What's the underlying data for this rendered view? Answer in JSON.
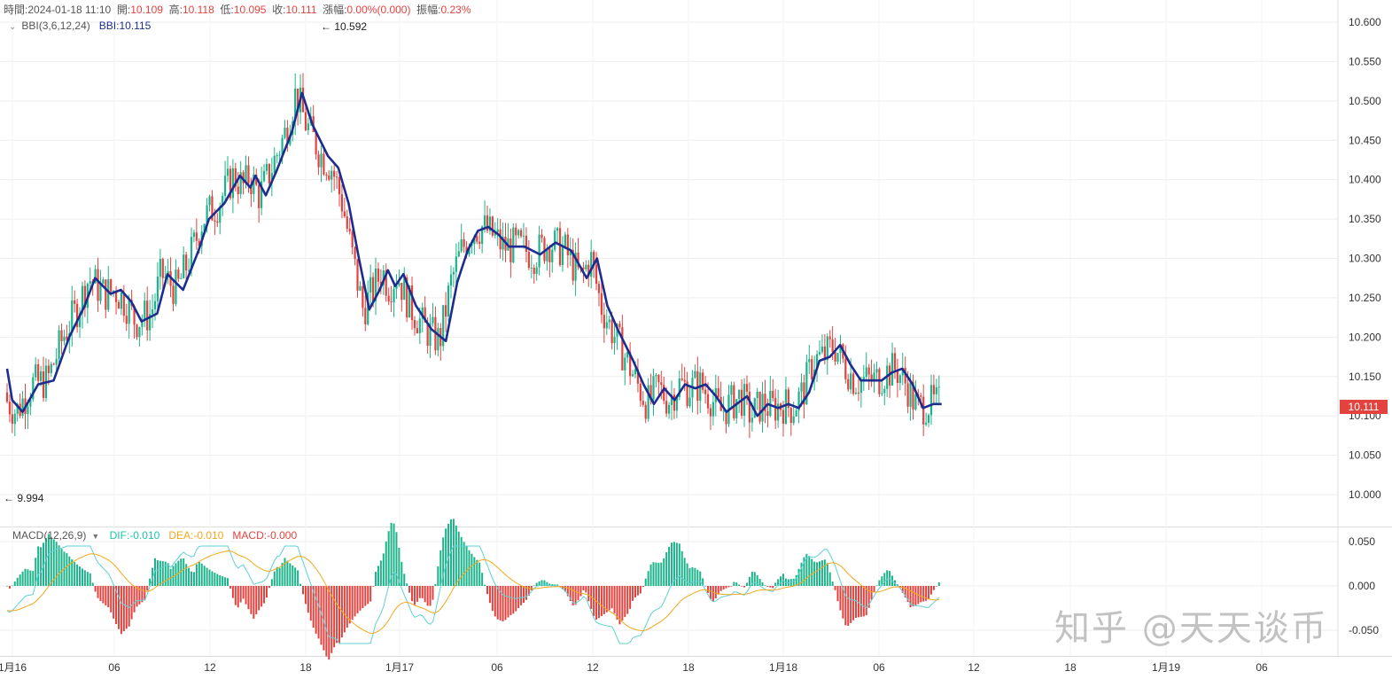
{
  "header": {
    "time_label": "時間:",
    "time_value": "2024-01-18 11:10",
    "open_label": "開:",
    "open_value": "10.109",
    "high_label": "高:",
    "high_value": "10.118",
    "low_label": "低:",
    "low_value": "10.095",
    "close_label": "收:",
    "close_value": "10.111",
    "change_label": "漲幅:",
    "change_value": "0.00%(0.000)",
    "amp_label": "振幅:",
    "amp_value": "0.23%"
  },
  "indicator_bbi": {
    "name": "BBI(3,6,12,24)",
    "value_text": "BBI:10.115"
  },
  "indicator_macd": {
    "name": "MACD(12,26,9)",
    "dif_text": "DIF:-0.010",
    "dea_text": "DEA:-0.010",
    "macd_text": "MACD:-0.000"
  },
  "markers": {
    "high": "← 10.592",
    "low": "← 9.994"
  },
  "last_price": "10.111",
  "watermark": "知乎 @天天谈币",
  "colors": {
    "up": "#1db38a",
    "down": "#e2433f",
    "bbi": "#1d2d8f",
    "dif": "#5fd0d6",
    "dea": "#f2a81c",
    "grid": "#eeeeee"
  },
  "chart_data": {
    "type": "candlestick",
    "price_axis": {
      "ticks": [
        "10.600",
        "10.550",
        "10.500",
        "10.450",
        "10.400",
        "10.350",
        "10.300",
        "10.250",
        "10.200",
        "10.150",
        "10.100",
        "10.050",
        "10.000"
      ],
      "ylim": [
        9.975,
        10.61
      ]
    },
    "macd_axis": {
      "ticks": [
        "0.050",
        "0.000",
        "-0.050"
      ],
      "ylim": [
        -0.07,
        0.055
      ]
    },
    "x_axis": {
      "ticks": [
        "1月16",
        "06",
        "12",
        "18",
        "1月17",
        "06",
        "12",
        "18",
        "1月18",
        "06",
        "12",
        "18",
        "1月19",
        "06"
      ]
    },
    "bbi_series": [
      {
        "t": 0,
        "v": 10.16
      },
      {
        "t": 0.5,
        "v": 10.12
      },
      {
        "t": 1.5,
        "v": 10.105
      },
      {
        "t": 3,
        "v": 10.14
      },
      {
        "t": 4.5,
        "v": 10.145
      },
      {
        "t": 6,
        "v": 10.2
      },
      {
        "t": 7.5,
        "v": 10.24
      },
      {
        "t": 8.5,
        "v": 10.275
      },
      {
        "t": 10,
        "v": 10.255
      },
      {
        "t": 11,
        "v": 10.26
      },
      {
        "t": 12,
        "v": 10.245
      },
      {
        "t": 13,
        "v": 10.22
      },
      {
        "t": 14.5,
        "v": 10.23
      },
      {
        "t": 15.5,
        "v": 10.28
      },
      {
        "t": 17,
        "v": 10.26
      },
      {
        "t": 18.5,
        "v": 10.31
      },
      {
        "t": 19.5,
        "v": 10.35
      },
      {
        "t": 21,
        "v": 10.37
      },
      {
        "t": 22.5,
        "v": 10.405
      },
      {
        "t": 23.5,
        "v": 10.39
      },
      {
        "t": 24,
        "v": 10.405
      },
      {
        "t": 25,
        "v": 10.38
      },
      {
        "t": 26,
        "v": 10.41
      },
      {
        "t": 27.5,
        "v": 10.46
      },
      {
        "t": 28.5,
        "v": 10.51
      },
      {
        "t": 29.5,
        "v": 10.47
      },
      {
        "t": 31,
        "v": 10.43
      },
      {
        "t": 32,
        "v": 10.415
      },
      {
        "t": 33,
        "v": 10.37
      },
      {
        "t": 34,
        "v": 10.3
      },
      {
        "t": 35,
        "v": 10.235
      },
      {
        "t": 36,
        "v": 10.26
      },
      {
        "t": 36.8,
        "v": 10.285
      },
      {
        "t": 37.5,
        "v": 10.265
      },
      {
        "t": 38.3,
        "v": 10.28
      },
      {
        "t": 39.5,
        "v": 10.24
      },
      {
        "t": 41,
        "v": 10.21
      },
      {
        "t": 42.4,
        "v": 10.195
      },
      {
        "t": 43.5,
        "v": 10.27
      },
      {
        "t": 44.5,
        "v": 10.31
      },
      {
        "t": 45.5,
        "v": 10.335
      },
      {
        "t": 46.5,
        "v": 10.34
      },
      {
        "t": 47.5,
        "v": 10.33
      },
      {
        "t": 48.5,
        "v": 10.315
      },
      {
        "t": 50,
        "v": 10.315
      },
      {
        "t": 51.5,
        "v": 10.305
      },
      {
        "t": 53,
        "v": 10.32
      },
      {
        "t": 54.5,
        "v": 10.31
      },
      {
        "t": 56,
        "v": 10.275
      },
      {
        "t": 57,
        "v": 10.3
      },
      {
        "t": 58,
        "v": 10.24
      },
      {
        "t": 59,
        "v": 10.21
      },
      {
        "t": 60.5,
        "v": 10.17
      },
      {
        "t": 61.5,
        "v": 10.14
      },
      {
        "t": 62.5,
        "v": 10.115
      },
      {
        "t": 63.5,
        "v": 10.135
      },
      {
        "t": 64.5,
        "v": 10.12
      },
      {
        "t": 65.5,
        "v": 10.14
      },
      {
        "t": 66.5,
        "v": 10.135
      },
      {
        "t": 67.5,
        "v": 10.14
      },
      {
        "t": 68.5,
        "v": 10.125
      },
      {
        "t": 69.5,
        "v": 10.105
      },
      {
        "t": 70.5,
        "v": 10.115
      },
      {
        "t": 71.5,
        "v": 10.125
      },
      {
        "t": 72.5,
        "v": 10.1
      },
      {
        "t": 73.5,
        "v": 10.115
      },
      {
        "t": 74.5,
        "v": 10.11
      },
      {
        "t": 75.5,
        "v": 10.115
      },
      {
        "t": 76.5,
        "v": 10.11
      },
      {
        "t": 77.5,
        "v": 10.13
      },
      {
        "t": 78.5,
        "v": 10.17
      },
      {
        "t": 79.5,
        "v": 10.175
      },
      {
        "t": 80.5,
        "v": 10.19
      },
      {
        "t": 81.5,
        "v": 10.165
      },
      {
        "t": 82.5,
        "v": 10.145
      },
      {
        "t": 83.5,
        "v": 10.145
      },
      {
        "t": 84.5,
        "v": 10.145
      },
      {
        "t": 85.5,
        "v": 10.155
      },
      {
        "t": 86.5,
        "v": 10.16
      },
      {
        "t": 87.5,
        "v": 10.14
      },
      {
        "t": 88.5,
        "v": 10.11
      },
      {
        "t": 89.5,
        "v": 10.115
      },
      {
        "t": 90.3,
        "v": 10.115
      }
    ]
  }
}
